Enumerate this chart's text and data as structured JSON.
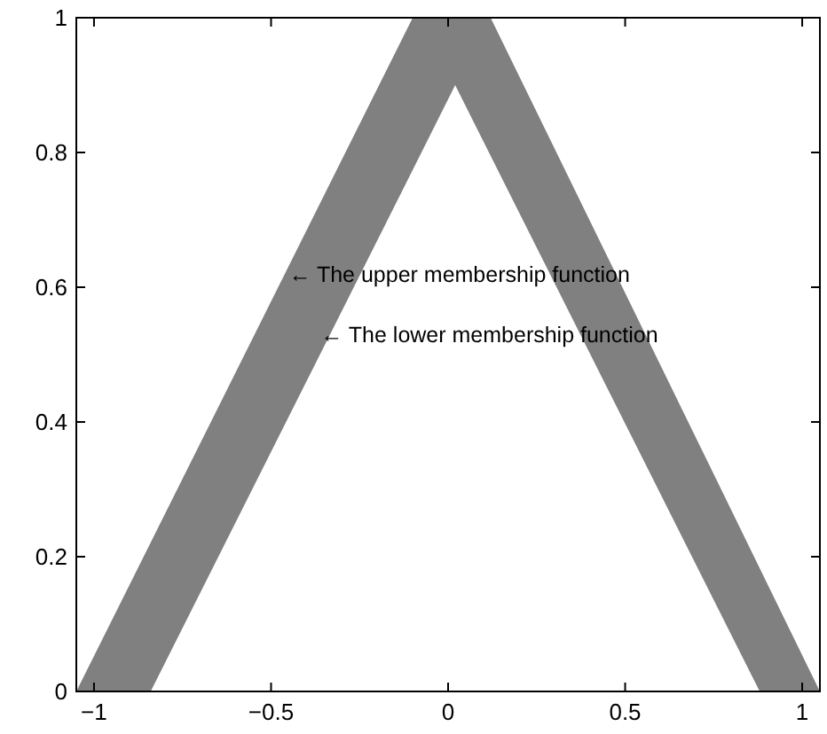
{
  "chart_data": {
    "type": "area",
    "x": [
      -1.05,
      -0.84,
      -0.1,
      0.02,
      0.12,
      0.88,
      1.05
    ],
    "series": [
      {
        "color": "#808080",
        "values": [
          0,
          0.221,
          1,
          1,
          1,
          0.183,
          0
        ]
      },
      {
        "color": "#ffffff",
        "values": [
          0,
          0,
          0.774,
          0.9,
          0.795,
          0,
          0
        ]
      }
    ],
    "xlim": [
      -1.05,
      1.05
    ],
    "ylim": [
      0,
      1
    ],
    "xticks": [
      {
        "value": -1,
        "label": "−1"
      },
      {
        "value": -0.5,
        "label": "−0.5"
      },
      0,
      0.5,
      1
    ],
    "yticks": [
      0,
      0.2,
      0.4,
      0.6,
      0.8,
      1
    ],
    "grid": false,
    "annotations": [
      {
        "text": "← The upper membership function",
        "x": -0.45,
        "y": 0.62
      },
      {
        "text": "← The lower membership function",
        "x": -0.36,
        "y": 0.53
      }
    ]
  }
}
